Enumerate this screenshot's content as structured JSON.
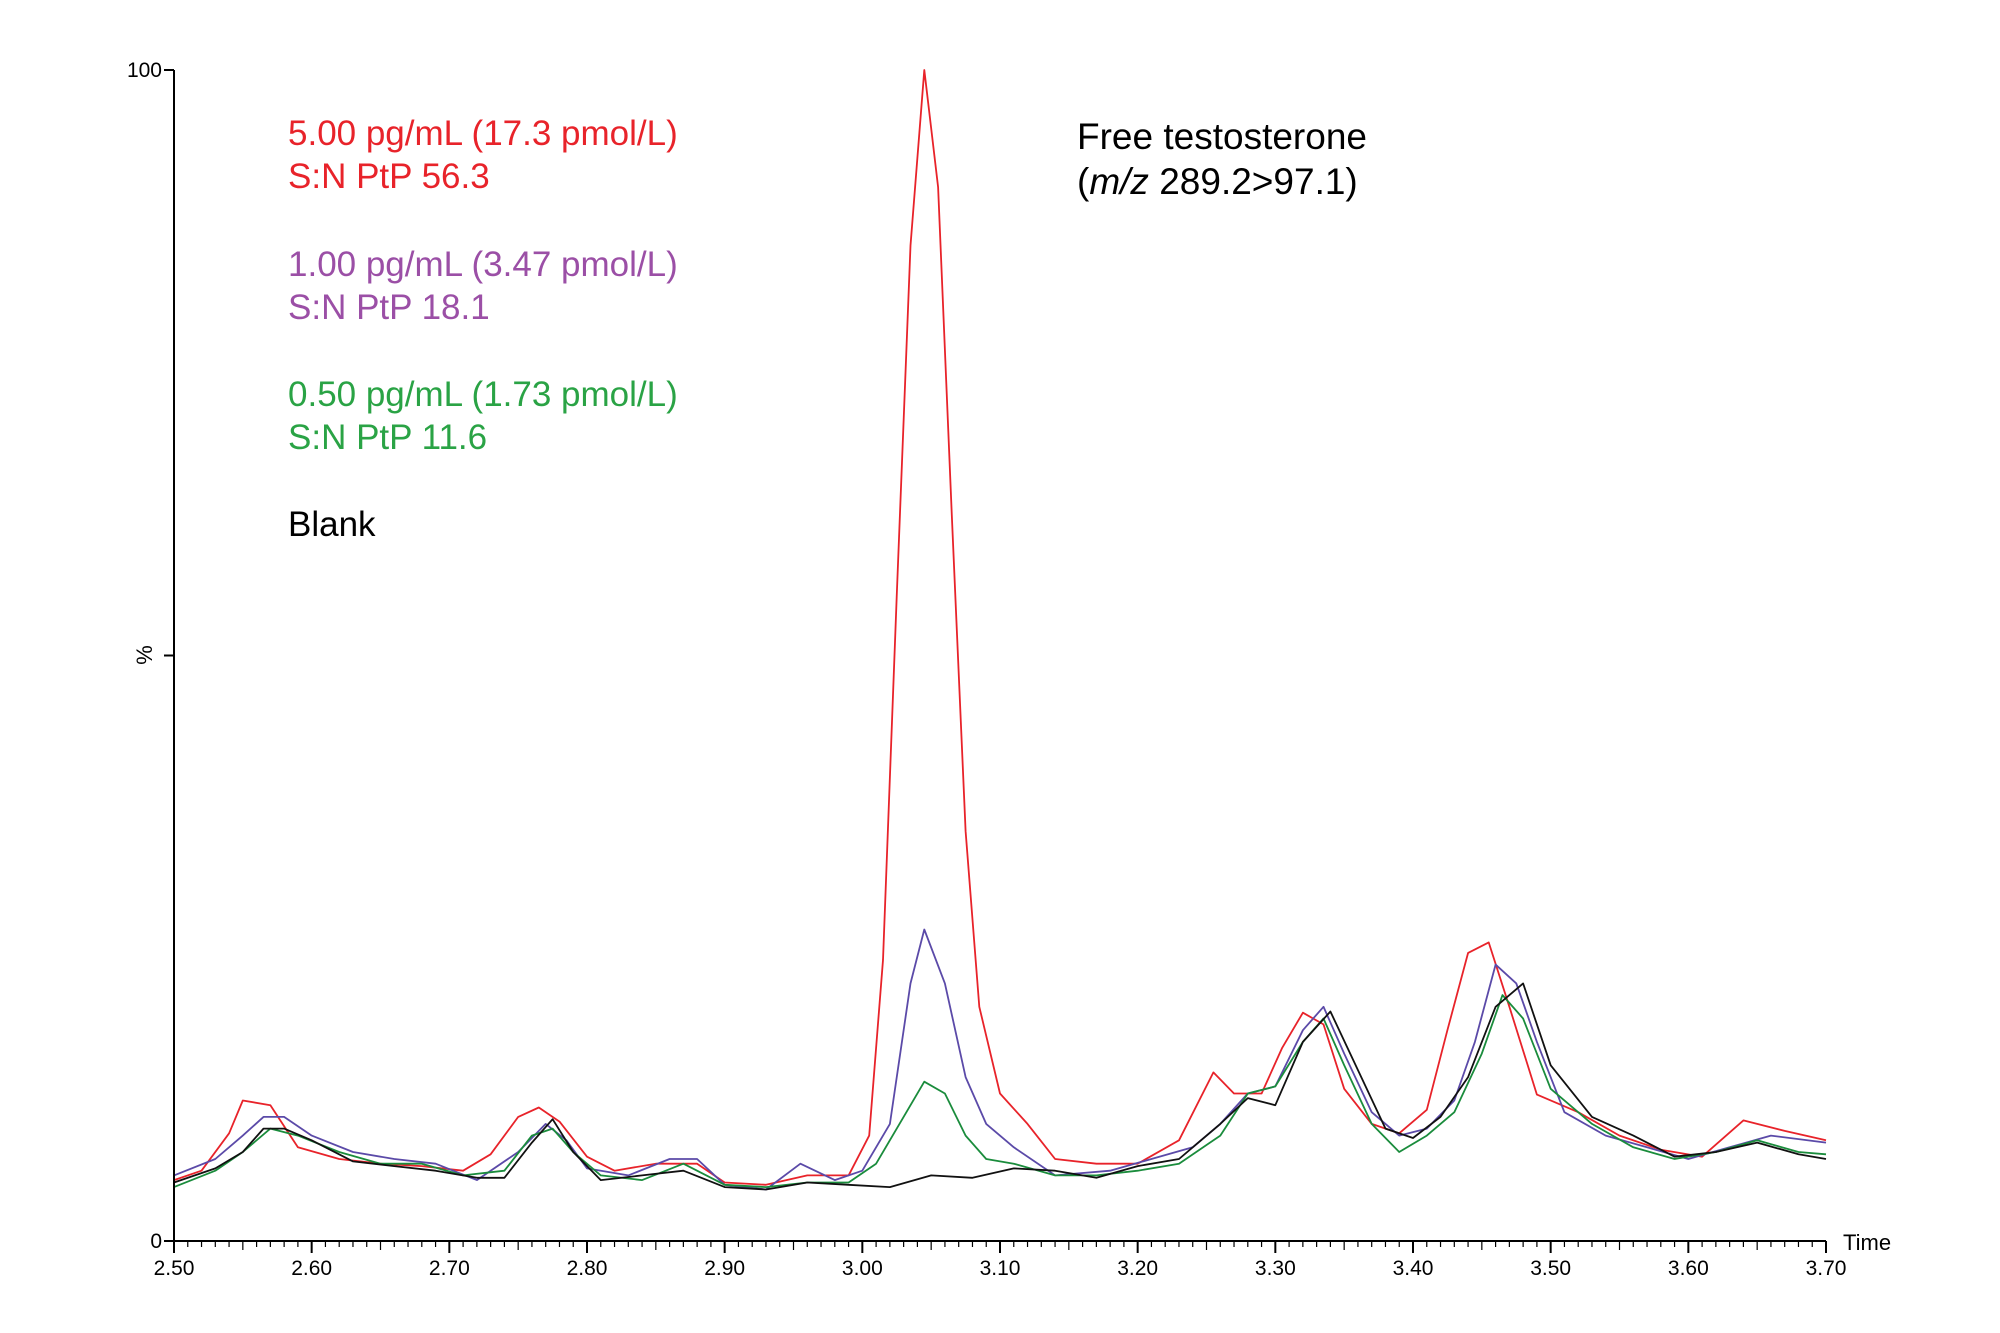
{
  "chart_data": {
    "type": "line",
    "title": "Free testosterone",
    "subtitle_italic": "m/z",
    "subtitle_rest": " 289.2>97.1)",
    "subtitle_open": "(",
    "xlabel": "Time",
    "ylabel": "%",
    "xlim": [
      2.5,
      3.7
    ],
    "ylim": [
      0,
      100
    ],
    "x_ticks": [
      "2.50",
      "2.60",
      "2.70",
      "2.80",
      "2.90",
      "3.00",
      "3.10",
      "3.20",
      "3.30",
      "3.40",
      "3.50",
      "3.60",
      "3.70"
    ],
    "y_ticks": [
      "0",
      "100"
    ],
    "grid": false,
    "legend_position": "top-left",
    "colors": {
      "red": "#e8232a",
      "purple": "#5b4aa8",
      "green": "#1a8c3c",
      "black": "#111111",
      "legend_purple": "#9b4fa6",
      "legend_green": "#2aa345"
    },
    "legend": [
      {
        "line1": "5.00 pg/mL (17.3 pmol/L)",
        "line2": "S:N PtP 56.3",
        "color": "#e8232a"
      },
      {
        "line1": "1.00 pg/mL (3.47 pmol/L)",
        "line2": "S:N PtP 18.1",
        "color": "#9b4fa6"
      },
      {
        "line1": "0.50 pg/mL (1.73 pmol/L)",
        "line2": "S:N PtP 11.6",
        "color": "#2aa345"
      },
      {
        "line1": "Blank",
        "line2": "",
        "color": "#000000"
      }
    ],
    "series": [
      {
        "color": "#e8232a",
        "points": [
          [
            2.5,
            5.2
          ],
          [
            2.52,
            6.0
          ],
          [
            2.54,
            9.2
          ],
          [
            2.55,
            12.0
          ],
          [
            2.57,
            11.6
          ],
          [
            2.59,
            8.0
          ],
          [
            2.62,
            7.0
          ],
          [
            2.65,
            6.6
          ],
          [
            2.68,
            6.4
          ],
          [
            2.71,
            6.0
          ],
          [
            2.73,
            7.4
          ],
          [
            2.75,
            10.6
          ],
          [
            2.765,
            11.4
          ],
          [
            2.78,
            10.2
          ],
          [
            2.8,
            7.2
          ],
          [
            2.82,
            6.0
          ],
          [
            2.85,
            6.6
          ],
          [
            2.88,
            6.6
          ],
          [
            2.9,
            5.0
          ],
          [
            2.93,
            4.8
          ],
          [
            2.96,
            5.6
          ],
          [
            2.99,
            5.6
          ],
          [
            3.005,
            9.0
          ],
          [
            3.015,
            24.0
          ],
          [
            3.025,
            55.0
          ],
          [
            3.035,
            85.0
          ],
          [
            3.045,
            100.0
          ],
          [
            3.055,
            90.0
          ],
          [
            3.065,
            62.0
          ],
          [
            3.075,
            35.0
          ],
          [
            3.085,
            20.0
          ],
          [
            3.1,
            12.6
          ],
          [
            3.12,
            10.0
          ],
          [
            3.14,
            7.0
          ],
          [
            3.17,
            6.6
          ],
          [
            3.2,
            6.6
          ],
          [
            3.23,
            8.6
          ],
          [
            3.255,
            14.4
          ],
          [
            3.27,
            12.6
          ],
          [
            3.29,
            12.6
          ],
          [
            3.305,
            16.5
          ],
          [
            3.32,
            19.5
          ],
          [
            3.335,
            18.5
          ],
          [
            3.35,
            13.0
          ],
          [
            3.37,
            10.0
          ],
          [
            3.39,
            9.2
          ],
          [
            3.41,
            11.2
          ],
          [
            3.425,
            18.0
          ],
          [
            3.44,
            24.6
          ],
          [
            3.455,
            25.5
          ],
          [
            3.47,
            20.0
          ],
          [
            3.49,
            12.5
          ],
          [
            3.52,
            11.0
          ],
          [
            3.55,
            9.0
          ],
          [
            3.58,
            7.8
          ],
          [
            3.61,
            7.2
          ],
          [
            3.64,
            10.3
          ],
          [
            3.67,
            9.4
          ],
          [
            3.7,
            8.6
          ]
        ]
      },
      {
        "color": "#5b4aa8",
        "points": [
          [
            2.5,
            5.6
          ],
          [
            2.53,
            7.0
          ],
          [
            2.55,
            9.0
          ],
          [
            2.565,
            10.6
          ],
          [
            2.58,
            10.6
          ],
          [
            2.6,
            9.0
          ],
          [
            2.63,
            7.6
          ],
          [
            2.66,
            7.0
          ],
          [
            2.69,
            6.6
          ],
          [
            2.72,
            5.2
          ],
          [
            2.75,
            7.6
          ],
          [
            2.77,
            10.0
          ],
          [
            2.785,
            8.6
          ],
          [
            2.8,
            6.2
          ],
          [
            2.83,
            5.6
          ],
          [
            2.86,
            7.0
          ],
          [
            2.88,
            7.0
          ],
          [
            2.9,
            4.8
          ],
          [
            2.93,
            4.4
          ],
          [
            2.955,
            6.6
          ],
          [
            2.98,
            5.2
          ],
          [
            3.0,
            6.0
          ],
          [
            3.02,
            10.0
          ],
          [
            3.035,
            22.0
          ],
          [
            3.045,
            26.6
          ],
          [
            3.06,
            22.0
          ],
          [
            3.075,
            14.0
          ],
          [
            3.09,
            10.0
          ],
          [
            3.11,
            8.0
          ],
          [
            3.14,
            5.6
          ],
          [
            3.18,
            6.0
          ],
          [
            3.21,
            7.0
          ],
          [
            3.24,
            8.0
          ],
          [
            3.26,
            10.0
          ],
          [
            3.28,
            12.6
          ],
          [
            3.3,
            13.2
          ],
          [
            3.32,
            18.0
          ],
          [
            3.335,
            20.0
          ],
          [
            3.35,
            16.0
          ],
          [
            3.37,
            11.0
          ],
          [
            3.39,
            9.0
          ],
          [
            3.41,
            9.6
          ],
          [
            3.43,
            12.0
          ],
          [
            3.445,
            17.0
          ],
          [
            3.46,
            23.6
          ],
          [
            3.475,
            22.0
          ],
          [
            3.49,
            17.0
          ],
          [
            3.51,
            11.0
          ],
          [
            3.54,
            9.0
          ],
          [
            3.57,
            8.0
          ],
          [
            3.6,
            7.0
          ],
          [
            3.63,
            8.0
          ],
          [
            3.66,
            9.0
          ],
          [
            3.7,
            8.4
          ]
        ]
      },
      {
        "color": "#1a8c3c",
        "points": [
          [
            2.5,
            4.6
          ],
          [
            2.53,
            6.0
          ],
          [
            2.55,
            7.6
          ],
          [
            2.57,
            9.6
          ],
          [
            2.59,
            9.0
          ],
          [
            2.62,
            7.6
          ],
          [
            2.65,
            6.6
          ],
          [
            2.68,
            6.6
          ],
          [
            2.71,
            5.6
          ],
          [
            2.74,
            6.0
          ],
          [
            2.76,
            9.0
          ],
          [
            2.775,
            9.6
          ],
          [
            2.79,
            7.6
          ],
          [
            2.81,
            5.6
          ],
          [
            2.84,
            5.2
          ],
          [
            2.87,
            6.6
          ],
          [
            2.9,
            4.8
          ],
          [
            2.93,
            4.6
          ],
          [
            2.96,
            5.0
          ],
          [
            2.99,
            5.0
          ],
          [
            3.01,
            6.6
          ],
          [
            3.03,
            10.6
          ],
          [
            3.045,
            13.6
          ],
          [
            3.06,
            12.6
          ],
          [
            3.075,
            9.0
          ],
          [
            3.09,
            7.0
          ],
          [
            3.11,
            6.6
          ],
          [
            3.14,
            5.6
          ],
          [
            3.17,
            5.6
          ],
          [
            3.2,
            6.0
          ],
          [
            3.23,
            6.6
          ],
          [
            3.26,
            9.0
          ],
          [
            3.28,
            12.6
          ],
          [
            3.3,
            13.2
          ],
          [
            3.32,
            17.0
          ],
          [
            3.335,
            19.0
          ],
          [
            3.35,
            15.0
          ],
          [
            3.37,
            10.0
          ],
          [
            3.39,
            7.6
          ],
          [
            3.41,
            9.0
          ],
          [
            3.43,
            11.0
          ],
          [
            3.45,
            16.0
          ],
          [
            3.465,
            21.0
          ],
          [
            3.48,
            19.0
          ],
          [
            3.5,
            13.0
          ],
          [
            3.53,
            10.0
          ],
          [
            3.56,
            8.0
          ],
          [
            3.59,
            7.0
          ],
          [
            3.62,
            7.6
          ],
          [
            3.65,
            8.6
          ],
          [
            3.68,
            7.6
          ],
          [
            3.7,
            7.4
          ]
        ]
      },
      {
        "color": "#111111",
        "points": [
          [
            2.5,
            5.0
          ],
          [
            2.53,
            6.2
          ],
          [
            2.55,
            7.6
          ],
          [
            2.565,
            9.6
          ],
          [
            2.58,
            9.6
          ],
          [
            2.6,
            8.6
          ],
          [
            2.63,
            6.8
          ],
          [
            2.66,
            6.4
          ],
          [
            2.69,
            6.0
          ],
          [
            2.72,
            5.4
          ],
          [
            2.74,
            5.4
          ],
          [
            2.76,
            8.4
          ],
          [
            2.775,
            10.4
          ],
          [
            2.79,
            7.6
          ],
          [
            2.81,
            5.2
          ],
          [
            2.84,
            5.6
          ],
          [
            2.87,
            6.0
          ],
          [
            2.9,
            4.6
          ],
          [
            2.93,
            4.4
          ],
          [
            2.96,
            5.0
          ],
          [
            2.99,
            4.8
          ],
          [
            3.02,
            4.6
          ],
          [
            3.05,
            5.6
          ],
          [
            3.08,
            5.4
          ],
          [
            3.11,
            6.2
          ],
          [
            3.14,
            6.0
          ],
          [
            3.17,
            5.4
          ],
          [
            3.2,
            6.4
          ],
          [
            3.23,
            7.0
          ],
          [
            3.26,
            10.0
          ],
          [
            3.28,
            12.2
          ],
          [
            3.3,
            11.6
          ],
          [
            3.32,
            17.0
          ],
          [
            3.34,
            19.6
          ],
          [
            3.36,
            14.6
          ],
          [
            3.38,
            9.6
          ],
          [
            3.4,
            8.8
          ],
          [
            3.42,
            10.6
          ],
          [
            3.44,
            14.0
          ],
          [
            3.46,
            20.0
          ],
          [
            3.48,
            22.0
          ],
          [
            3.5,
            15.0
          ],
          [
            3.53,
            10.6
          ],
          [
            3.56,
            9.0
          ],
          [
            3.59,
            7.2
          ],
          [
            3.62,
            7.6
          ],
          [
            3.65,
            8.4
          ],
          [
            3.68,
            7.4
          ],
          [
            3.7,
            7.0
          ]
        ]
      }
    ]
  }
}
